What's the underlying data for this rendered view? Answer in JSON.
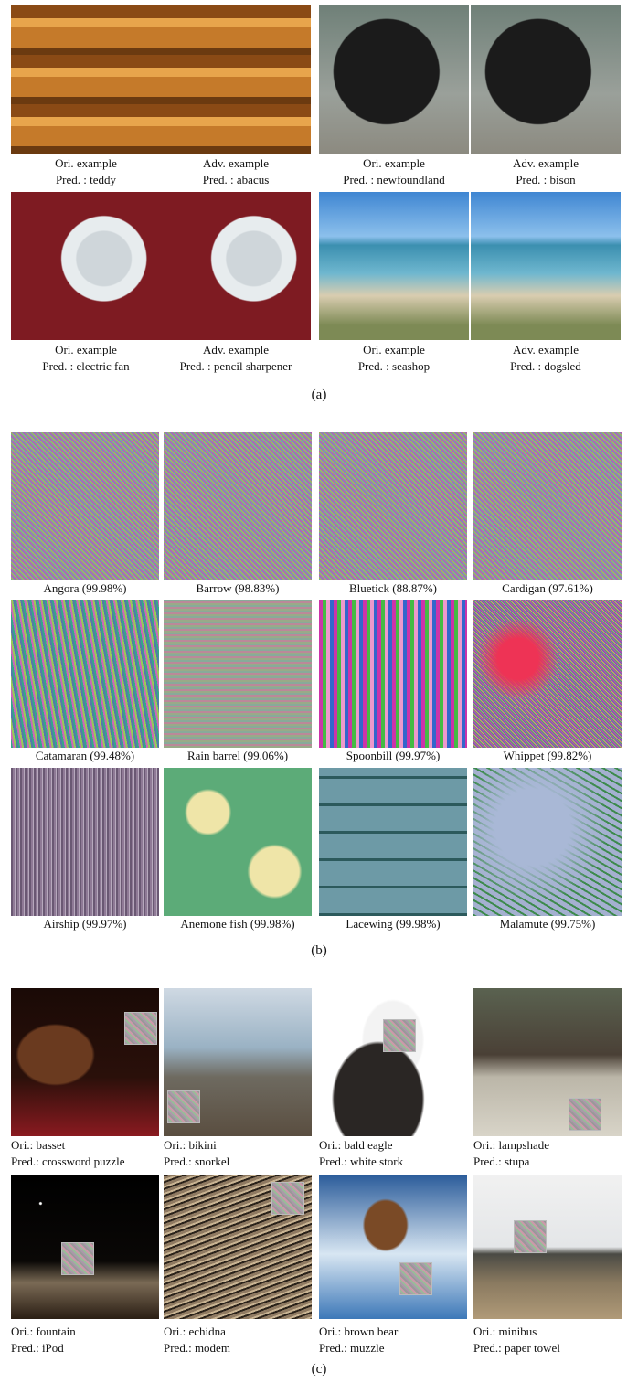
{
  "panel_a": {
    "items": [
      {
        "label": "Ori. example",
        "prediction": "Pred. : teddy"
      },
      {
        "label": "Adv. example",
        "prediction": "Pred. : abacus"
      },
      {
        "label": "Ori. example",
        "prediction": "Pred. : newfoundland"
      },
      {
        "label": "Adv. example",
        "prediction": "Pred. : bison"
      },
      {
        "label": "Ori. example",
        "prediction": "Pred. : electric fan"
      },
      {
        "label": "Adv. example",
        "prediction": "Pred. : pencil sharpener"
      },
      {
        "label": "Ori. example",
        "prediction": "Pred. : seashop"
      },
      {
        "label": "Adv. example",
        "prediction": "Pred. : dogsled"
      }
    ],
    "caption": "(a)"
  },
  "panel_b": {
    "items": [
      "Angora (99.98%)",
      "Barrow (98.83%)",
      "Bluetick (88.87%)",
      "Cardigan (97.61%)",
      "Catamaran (99.48%)",
      "Rain barrel (99.06%)",
      "Spoonbill (99.97%)",
      "Whippet (99.82%)",
      "Airship (99.97%)",
      "Anemone fish (99.98%)",
      "Lacewing (99.98%)",
      "Malamute (99.75%)"
    ],
    "caption": "(b)"
  },
  "panel_c": {
    "items": [
      {
        "original": "Ori.: basset",
        "prediction": "Pred.: crossword puzzle"
      },
      {
        "original": "Ori.: bikini",
        "prediction": "Pred.: snorkel"
      },
      {
        "original": "Ori.: bald eagle",
        "prediction": "Pred.: white stork"
      },
      {
        "original": "Ori.: lampshade",
        "prediction": "Pred.: stupa"
      },
      {
        "original": "Ori.: fountain",
        "prediction": "Pred.: iPod"
      },
      {
        "original": "Ori.: echidna",
        "prediction": "Pred.: modem"
      },
      {
        "original": "Ori.: brown bear",
        "prediction": "Pred.: muzzle"
      },
      {
        "original": "Ori.: minibus",
        "prediction": "Pred.: paper towel"
      }
    ],
    "caption": "(c)"
  }
}
